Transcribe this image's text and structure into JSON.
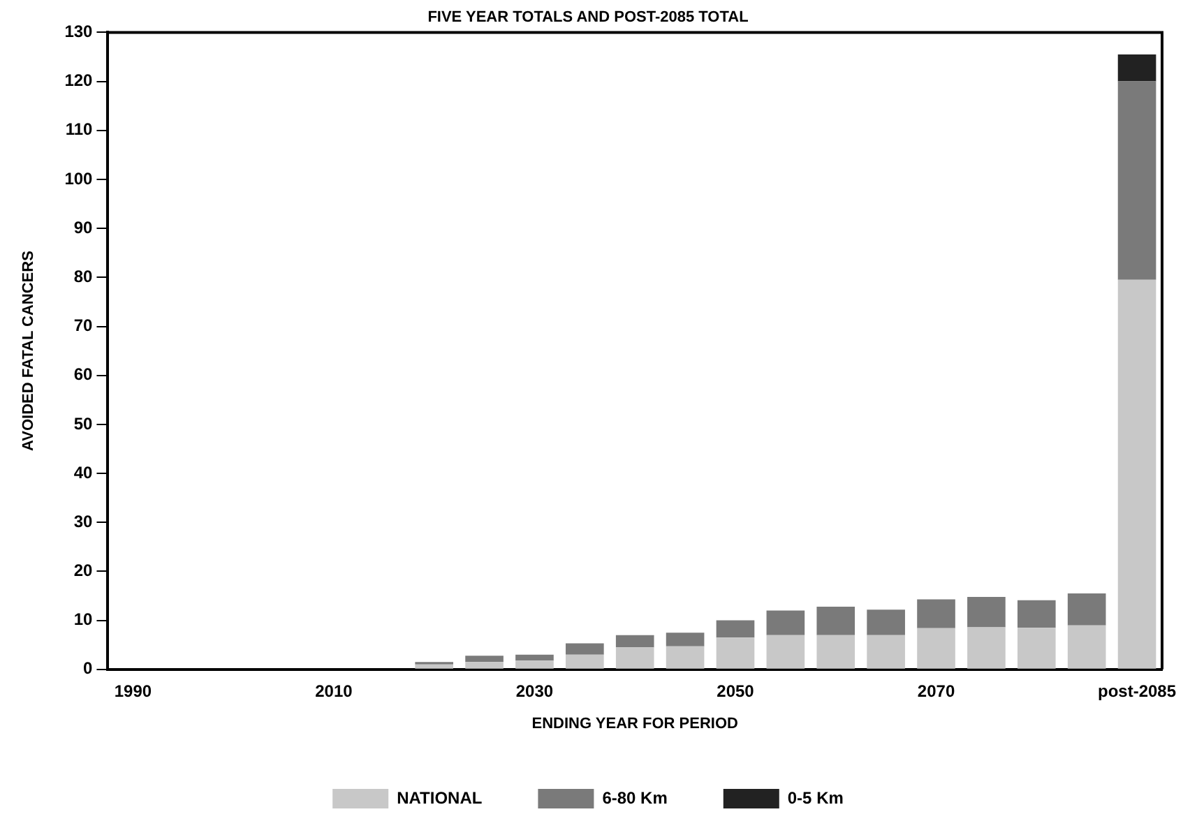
{
  "chart_data": {
    "type": "bar",
    "title": "FIVE YEAR TOTALS AND POST-2085 TOTAL",
    "xlabel": "ENDING YEAR FOR PERIOD",
    "ylabel": "AVOIDED FATAL CANCERS",
    "categories": [
      "1990",
      null,
      null,
      null,
      "2010",
      null,
      null,
      null,
      "2030",
      null,
      null,
      null,
      "2050",
      null,
      null,
      null,
      "2070",
      null,
      null,
      null,
      "post-2085"
    ],
    "stacked": true,
    "series": [
      {
        "name": "NATIONAL",
        "color": "#c8c8c8",
        "values": [
          0,
          0,
          0,
          0,
          0,
          0,
          1.0,
          1.5,
          1.8,
          3.0,
          4.5,
          4.7,
          6.5,
          7.0,
          7.0,
          7.0,
          8.4,
          8.6,
          8.5,
          9.0,
          79.5
        ]
      },
      {
        "name": "6-80 Km",
        "color": "#7a7a7a",
        "values": [
          0,
          0,
          0,
          0,
          0,
          0,
          0.5,
          1.3,
          1.2,
          2.3,
          2.5,
          2.8,
          3.5,
          5.0,
          5.8,
          5.2,
          5.9,
          6.2,
          5.6,
          6.5,
          40.5
        ]
      },
      {
        "name": "0-5 Km",
        "color": "#222222",
        "values": [
          null,
          null,
          null,
          null,
          null,
          null,
          null,
          null,
          null,
          null,
          null,
          null,
          null,
          null,
          null,
          null,
          null,
          null,
          null,
          null,
          5.5
        ]
      }
    ],
    "ylim": [
      0,
      130
    ],
    "yticks": [
      0,
      10,
      20,
      30,
      40,
      50,
      60,
      70,
      80,
      90,
      100,
      110,
      120,
      130
    ],
    "grid": false,
    "legend": "bottom"
  }
}
